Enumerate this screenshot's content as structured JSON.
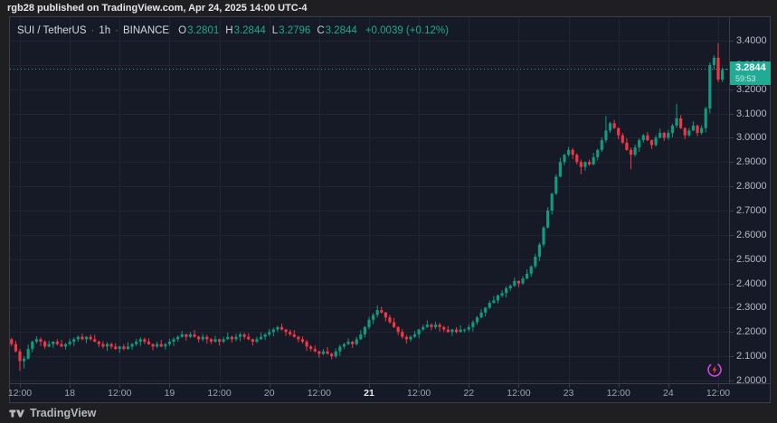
{
  "page": {
    "title": "rgb28 published on TradingView.com, Apr 24, 2025 14:00 UTC-4"
  },
  "legend": {
    "symbol": "SUI / TetherUS",
    "separator": "·",
    "interval": "1h",
    "exchange": "BINANCE",
    "ohlc": [
      {
        "k": "O",
        "v": "3.2801"
      },
      {
        "k": "H",
        "v": "3.2844"
      },
      {
        "k": "L",
        "v": "3.2796"
      },
      {
        "k": "C",
        "v": "3.2844"
      }
    ],
    "change": "+0.0039 (+0.12%)"
  },
  "price_scale": {
    "labels": [
      "3.4000",
      "3.3000",
      "3.2000",
      "3.1000",
      "3.0000",
      "2.9000",
      "2.8000",
      "2.7000",
      "2.6000",
      "2.5000",
      "2.4000",
      "2.3000",
      "2.2000",
      "2.1000",
      "2.0000"
    ],
    "badge": {
      "price": "3.2844",
      "countdown": "59:53"
    }
  },
  "footer": {
    "brand": "TradingView"
  },
  "colors": {
    "up": "#109a80",
    "down": "#f23645",
    "accent_text": "#1ea98c",
    "badge_bg": "#22ab94",
    "chart_bg": "#151a26",
    "grid": "#1f2534",
    "axis_border": "#3a3e4a",
    "axis_text": "#b4b8c0",
    "page_bg": "#1f1f21",
    "lightning_ring": "#cd49e0",
    "lightning_bolt": "#f23645"
  },
  "chart_data": {
    "type": "candlestick",
    "symbol": "SUI / TetherUS",
    "exchange": "BINANCE",
    "interval": "1h",
    "last_update_label": "Apr 24, 2025 14:00 UTC-4",
    "current_price": 3.2844,
    "last_bar": {
      "open": 3.2801,
      "high": 3.2844,
      "low": 3.2796,
      "close": 3.2844,
      "change": 0.0039,
      "change_pct": 0.12
    },
    "y_axis": {
      "tick_min": 2.0,
      "tick_max": 3.4,
      "tick_step": 0.1,
      "visible_min": 1.985,
      "visible_max": 3.497
    },
    "time_ticks": [
      {
        "label": "12:00",
        "bar": 2
      },
      {
        "label": "18",
        "bar": 14
      },
      {
        "label": "12:00",
        "bar": 26
      },
      {
        "label": "19",
        "bar": 38
      },
      {
        "label": "12:00",
        "bar": 50
      },
      {
        "label": "20",
        "bar": 62
      },
      {
        "label": "12:00",
        "bar": 74
      },
      {
        "label": "21",
        "bar": 86,
        "strong": true
      },
      {
        "label": "12:00",
        "bar": 98
      },
      {
        "label": "22",
        "bar": 110
      },
      {
        "label": "12:00",
        "bar": 122
      },
      {
        "label": "23",
        "bar": 134
      },
      {
        "label": "12:00",
        "bar": 146
      },
      {
        "label": "24",
        "bar": 158
      },
      {
        "label": "12:00",
        "bar": 170
      }
    ],
    "first_open": 2.17,
    "closes": [
      2.15,
      2.12,
      2.08,
      2.09,
      2.13,
      2.16,
      2.17,
      2.16,
      2.14,
      2.15,
      2.16,
      2.15,
      2.14,
      2.15,
      2.16,
      2.17,
      2.18,
      2.17,
      2.18,
      2.17,
      2.16,
      2.15,
      2.14,
      2.15,
      2.14,
      2.13,
      2.14,
      2.13,
      2.14,
      2.15,
      2.16,
      2.17,
      2.16,
      2.15,
      2.14,
      2.15,
      2.14,
      2.15,
      2.16,
      2.17,
      2.18,
      2.19,
      2.18,
      2.19,
      2.18,
      2.17,
      2.18,
      2.17,
      2.16,
      2.17,
      2.16,
      2.17,
      2.18,
      2.17,
      2.18,
      2.19,
      2.18,
      2.17,
      2.16,
      2.17,
      2.18,
      2.19,
      2.2,
      2.21,
      2.22,
      2.21,
      2.2,
      2.19,
      2.18,
      2.17,
      2.16,
      2.14,
      2.13,
      2.12,
      2.11,
      2.12,
      2.11,
      2.1,
      2.12,
      2.14,
      2.15,
      2.16,
      2.15,
      2.17,
      2.19,
      2.22,
      2.25,
      2.27,
      2.29,
      2.28,
      2.26,
      2.24,
      2.22,
      2.2,
      2.18,
      2.17,
      2.18,
      2.19,
      2.21,
      2.22,
      2.23,
      2.22,
      2.23,
      2.22,
      2.21,
      2.2,
      2.21,
      2.2,
      2.21,
      2.21,
      2.22,
      2.24,
      2.26,
      2.28,
      2.3,
      2.32,
      2.33,
      2.35,
      2.36,
      2.38,
      2.39,
      2.41,
      2.4,
      2.42,
      2.44,
      2.47,
      2.51,
      2.56,
      2.63,
      2.7,
      2.77,
      2.84,
      2.9,
      2.93,
      2.95,
      2.93,
      2.9,
      2.88,
      2.9,
      2.89,
      2.92,
      2.95,
      2.99,
      3.03,
      3.06,
      3.04,
      3.01,
      2.98,
      2.95,
      2.93,
      2.96,
      2.99,
      3.01,
      2.99,
      2.97,
      3.0,
      3.02,
      3.0,
      3.02,
      3.05,
      3.08,
      3.04,
      3.01,
      3.03,
      3.05,
      3.02,
      3.04,
      3.12,
      3.3,
      3.33,
      3.24,
      3.28,
      3.2844
    ],
    "wick_up": [
      0.006,
      0.014,
      0.003,
      0.01,
      0.018,
      0.005,
      0.012,
      0.008
    ],
    "wick_down": [
      0.01,
      0.004,
      0.016,
      0.006,
      0.003,
      0.013,
      0.008,
      0.018
    ],
    "overrides": {
      "2": [
        2.12,
        2.13,
        2.04,
        2.08
      ],
      "3": [
        2.08,
        2.1,
        2.05,
        2.09
      ],
      "88": [
        2.27,
        2.31,
        2.26,
        2.29
      ],
      "137": [
        2.9,
        2.91,
        2.85,
        2.88
      ],
      "143": [
        2.99,
        3.09,
        2.98,
        3.03
      ],
      "149": [
        2.95,
        2.96,
        2.87,
        2.93
      ],
      "160": [
        3.05,
        3.14,
        3.04,
        3.08
      ],
      "168": [
        3.12,
        3.31,
        3.1,
        3.3
      ],
      "169": [
        3.3,
        3.34,
        3.28,
        3.33
      ],
      "170": [
        3.33,
        3.39,
        3.23,
        3.24
      ],
      "171": [
        3.24,
        3.29,
        3.23,
        3.28
      ],
      "172": [
        3.2801,
        3.2844,
        3.2796,
        3.2844
      ]
    }
  }
}
